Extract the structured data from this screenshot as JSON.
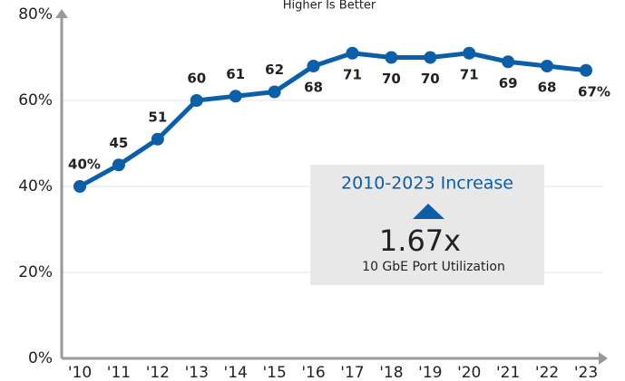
{
  "chart_data": {
    "type": "line",
    "subtitle": "Higher Is Better",
    "categories": [
      "'10",
      "'11",
      "'12",
      "'13",
      "'14",
      "'15",
      "'16",
      "'17",
      "'18",
      "'19",
      "'20",
      "'21",
      "'22",
      "'23"
    ],
    "series": [
      {
        "color": "#0b5ea8",
        "values": [
          40,
          45,
          51,
          60,
          61,
          62,
          68,
          71,
          70,
          70,
          71,
          69,
          68,
          67
        ],
        "value_labels": [
          "40%",
          "45",
          "51",
          "60",
          "61",
          "62",
          "68",
          "71",
          "70",
          "70",
          "71",
          "69",
          "68",
          "67%"
        ]
      }
    ],
    "ylim": [
      0,
      80
    ],
    "yticks": [
      {
        "value": 0,
        "label": "0%"
      },
      {
        "value": 20,
        "label": "20%"
      },
      {
        "value": 40,
        "label": "40%"
      },
      {
        "value": 60,
        "label": "60%"
      },
      {
        "value": 80,
        "label": "80%"
      }
    ],
    "grid": true,
    "annotation": {
      "title": "2010-2023 Increase",
      "value": "1.67x",
      "label": "10 GbE Port Utilization"
    }
  }
}
